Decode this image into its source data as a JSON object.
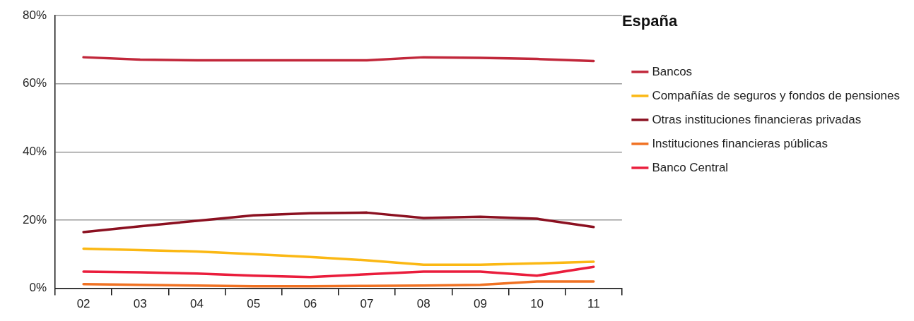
{
  "chart_data": {
    "type": "line",
    "legend_title": "España",
    "categories": [
      "02",
      "03",
      "04",
      "05",
      "06",
      "07",
      "08",
      "09",
      "10",
      "11"
    ],
    "series": [
      {
        "name": "Bancos",
        "color": "#c1273a",
        "values": [
          67.8,
          67.1,
          66.9,
          66.9,
          66.9,
          66.9,
          67.8,
          67.6,
          67.3,
          66.7
        ]
      },
      {
        "name": "Compañías de seguros y fondos de pensiones",
        "color": "#fbb814",
        "values": [
          11.6,
          11.2,
          10.8,
          10,
          9.2,
          8.2,
          6.9,
          6.9,
          7.3,
          7.8
        ]
      },
      {
        "name": "Otras instituciones financieras privadas",
        "color": "#8b1020",
        "values": [
          16.5,
          18.2,
          19.8,
          21.4,
          22,
          22.2,
          20.6,
          21,
          20.4,
          18
        ]
      },
      {
        "name": "Instituciones financieras públicas",
        "color": "#f07122",
        "values": [
          1.2,
          1,
          0.8,
          0.6,
          0.6,
          0.7,
          0.8,
          1,
          2,
          2
        ]
      },
      {
        "name": "Banco Central",
        "color": "#ea1d3c",
        "values": [
          4.9,
          4.7,
          4.3,
          3.7,
          3.3,
          4.1,
          4.9,
          4.9,
          3.7,
          6.3
        ]
      }
    ],
    "ylim": [
      0,
      80
    ],
    "yticks": [
      {
        "value": 0,
        "label": "0%"
      },
      {
        "value": 20,
        "label": "20%"
      },
      {
        "value": 40,
        "label": "40%"
      },
      {
        "value": 60,
        "label": "60%"
      },
      {
        "value": 80,
        "label": "80%"
      }
    ],
    "grid": "y",
    "legend": "right",
    "marker": "none",
    "line_style": "solid"
  }
}
